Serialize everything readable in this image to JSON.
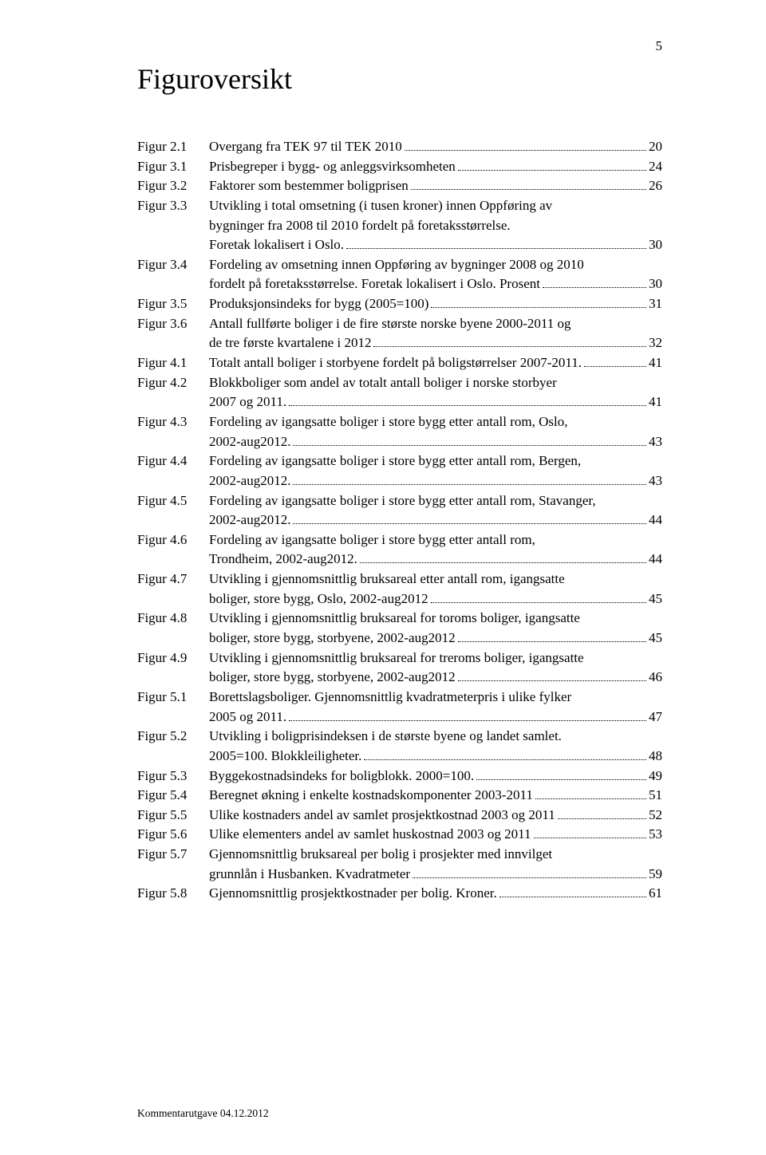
{
  "page_number": "5",
  "title": "Figuroversikt",
  "footer": "Kommentarutgave 04.12.2012",
  "entries": [
    {
      "label": "Figur 2.1",
      "lines": [
        "Overgang fra TEK 97 til TEK 2010"
      ],
      "page": "20"
    },
    {
      "label": "Figur 3.1",
      "lines": [
        "Prisbegreper i bygg- og anleggsvirksomheten"
      ],
      "page": "24"
    },
    {
      "label": "Figur 3.2",
      "lines": [
        "Faktorer som bestemmer boligprisen"
      ],
      "page": "26"
    },
    {
      "label": "Figur 3.3",
      "lines": [
        "Utvikling i total omsetning (i tusen kroner) innen Oppføring av",
        "bygninger fra 2008 til 2010 fordelt på foretaksstørrelse.",
        "Foretak lokalisert i Oslo."
      ],
      "page": "30"
    },
    {
      "label": "Figur 3.4",
      "lines": [
        "Fordeling av omsetning innen Oppføring av bygninger 2008 og 2010",
        "fordelt på foretaksstørrelse. Foretak lokalisert i Oslo. Prosent"
      ],
      "page": "30"
    },
    {
      "label": "Figur 3.5",
      "lines": [
        "Produksjonsindeks for bygg (2005=100)"
      ],
      "page": "31"
    },
    {
      "label": "Figur 3.6",
      "lines": [
        "Antall fullførte boliger i de fire største norske byene 2000-2011 og",
        "de tre første kvartalene i 2012"
      ],
      "page": "32"
    },
    {
      "label": "Figur 4.1",
      "lines": [
        "Totalt antall boliger i storbyene fordelt på boligstørrelser 2007-2011."
      ],
      "page": "41"
    },
    {
      "label": "Figur 4.2",
      "lines": [
        "Blokkboliger som andel av totalt antall boliger i norske storbyer",
        "2007 og 2011."
      ],
      "page": "41"
    },
    {
      "label": "Figur 4.3",
      "lines": [
        "Fordeling av igangsatte boliger i store bygg etter antall rom, Oslo,",
        "2002-aug2012."
      ],
      "page": "43"
    },
    {
      "label": "Figur 4.4",
      "lines": [
        "Fordeling av igangsatte boliger i store bygg etter antall rom, Bergen,",
        "2002-aug2012."
      ],
      "page": "43"
    },
    {
      "label": "Figur 4.5",
      "lines": [
        "Fordeling av igangsatte boliger i store bygg etter antall rom, Stavanger,",
        "2002-aug2012."
      ],
      "page": "44"
    },
    {
      "label": "Figur 4.6",
      "lines": [
        "Fordeling av igangsatte boliger i store bygg etter antall rom,",
        "Trondheim, 2002-aug2012."
      ],
      "page": "44"
    },
    {
      "label": "Figur 4.7",
      "lines": [
        "Utvikling i gjennomsnittlig bruksareal etter antall rom, igangsatte",
        "boliger, store bygg, Oslo, 2002-aug2012"
      ],
      "page": "45"
    },
    {
      "label": "Figur 4.8",
      "lines": [
        "Utvikling i gjennomsnittlig bruksareal for toroms boliger, igangsatte",
        "boliger, store bygg, storbyene, 2002-aug2012"
      ],
      "page": "45"
    },
    {
      "label": "Figur 4.9",
      "lines": [
        "Utvikling i gjennomsnittlig bruksareal for treroms boliger, igangsatte",
        "boliger, store bygg, storbyene, 2002-aug2012"
      ],
      "page": "46"
    },
    {
      "label": "Figur 5.1",
      "lines": [
        "Borettslagsboliger. Gjennomsnittlig kvadratmeterpris i ulike fylker",
        "2005 og 2011."
      ],
      "page": "47"
    },
    {
      "label": "Figur 5.2",
      "lines": [
        "Utvikling i boligprisindeksen i de største byene og landet samlet.",
        "2005=100. Blokkleiligheter."
      ],
      "page": "48"
    },
    {
      "label": "Figur 5.3",
      "lines": [
        "Byggekostnadsindeks for boligblokk. 2000=100."
      ],
      "page": "49"
    },
    {
      "label": "Figur 5.4",
      "lines": [
        "Beregnet økning i enkelte kostnadskomponenter 2003-2011"
      ],
      "page": "51"
    },
    {
      "label": "Figur 5.5",
      "lines": [
        "Ulike kostnaders andel av samlet prosjektkostnad 2003 og 2011"
      ],
      "page": "52"
    },
    {
      "label": "Figur 5.6",
      "lines": [
        "Ulike elementers andel av samlet huskostnad 2003 og 2011"
      ],
      "page": "53"
    },
    {
      "label": "Figur 5.7",
      "lines": [
        "Gjennomsnittlig bruksareal per bolig i prosjekter med innvilget",
        "grunnlån i Husbanken. Kvadratmeter"
      ],
      "page": "59"
    },
    {
      "label": "Figur 5.8",
      "lines": [
        "Gjennomsnittlig prosjektkostnader per bolig. Kroner."
      ],
      "page": "61"
    }
  ]
}
